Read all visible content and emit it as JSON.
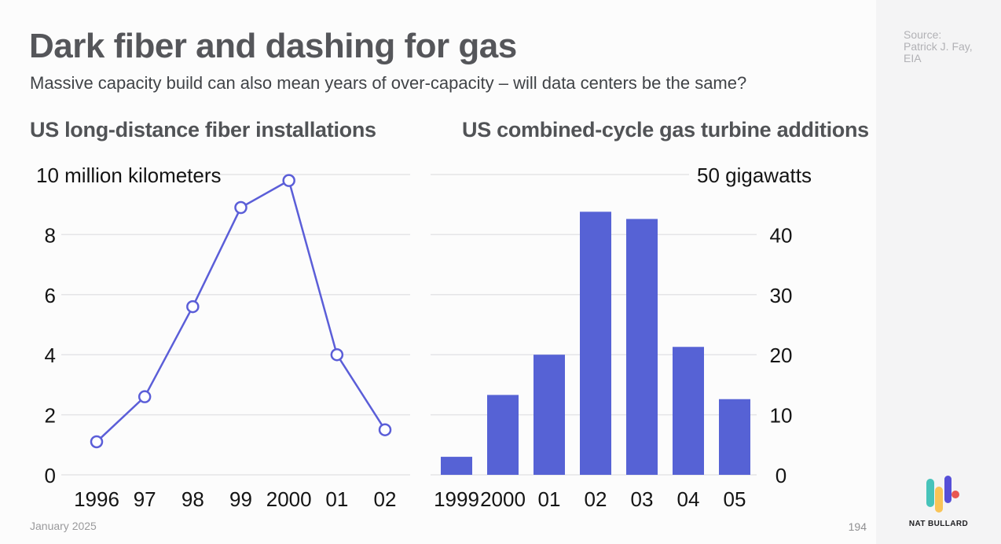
{
  "header": {
    "title": "Dark fiber and dashing for gas",
    "subtitle": "Massive capacity build can also mean years of over-capacity – will data centers be the same?"
  },
  "footer": {
    "date": "January 2025",
    "page": "194"
  },
  "sidebar": {
    "source_lines": [
      "Source:",
      "Patrick J. Fay,",
      "EIA"
    ],
    "logo_text": "NAT BULLARD",
    "logo_colors": {
      "teal": "#47c3ba",
      "yellow": "#f9c457",
      "indigo": "#564fd8",
      "red": "#e85751"
    }
  },
  "colors": {
    "line": "#5b5ed8",
    "bar": "#5662d5",
    "grid": "#e5e5e7",
    "axis_text": "#141414",
    "marker_fill": "#ffffff"
  },
  "chart_data": [
    {
      "type": "line",
      "title": "US long-distance fiber installations",
      "unit_label": "10 million kilometers",
      "categories": [
        "1996",
        "97",
        "98",
        "99",
        "2000",
        "01",
        "02"
      ],
      "values": [
        1.1,
        2.6,
        5.6,
        8.9,
        9.8,
        4.0,
        1.5
      ],
      "ylim": [
        0,
        10
      ],
      "yticks": [
        0,
        2,
        4,
        6,
        8
      ],
      "axis_side": "left",
      "grid": true,
      "legend": "none",
      "color": "#5b5ed8"
    },
    {
      "type": "bar",
      "title": "US combined-cycle gas turbine additions",
      "unit_label": "50 gigawatts",
      "categories": [
        "1999",
        "2000",
        "01",
        "02",
        "03",
        "04",
        "05"
      ],
      "values": [
        3.0,
        13.3,
        20.0,
        43.8,
        42.6,
        21.3,
        12.6
      ],
      "ylim": [
        0,
        50
      ],
      "yticks": [
        0,
        10,
        20,
        30,
        40
      ],
      "axis_side": "right",
      "grid": true,
      "legend": "none",
      "color": "#5662d5"
    }
  ]
}
